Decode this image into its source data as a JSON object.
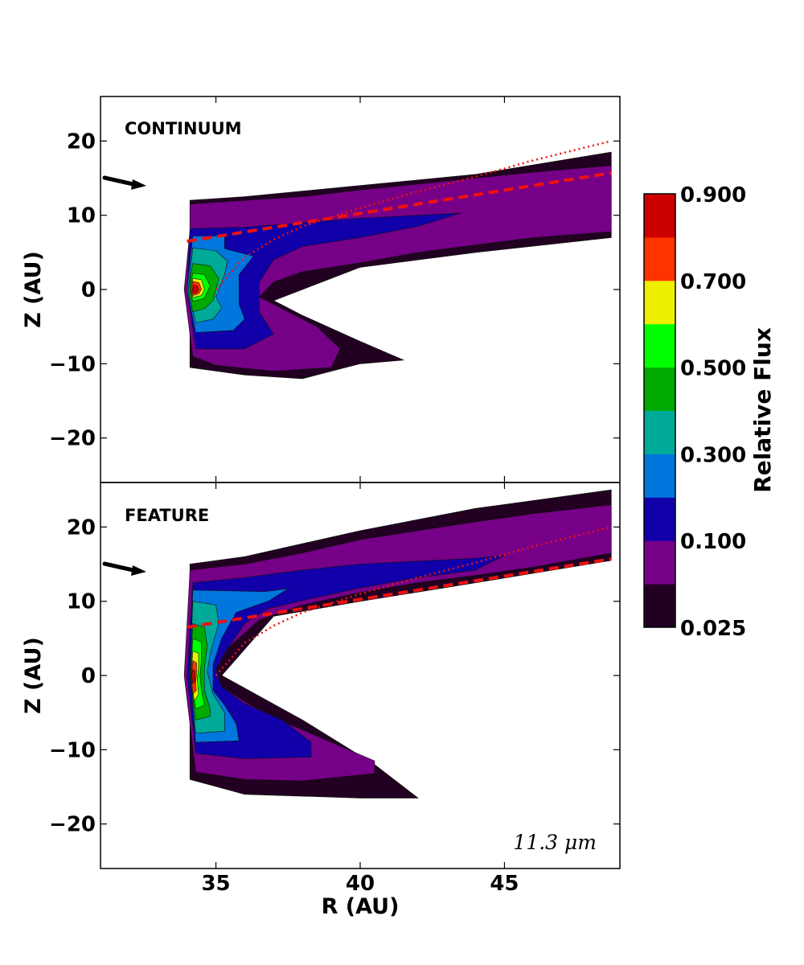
{
  "chart_data": [
    {
      "type": "heatmap",
      "panel_label": "CONTINUUM",
      "xlabel": "",
      "ylabel": "Z (AU)",
      "xlim": [
        31,
        49
      ],
      "ylim": [
        -26,
        26
      ],
      "xticks": [
        35,
        40,
        45
      ],
      "yticks": [
        -20,
        -10,
        0,
        10,
        20
      ],
      "ytick_labels": [
        "−20",
        "−10",
        "0",
        "10",
        "20"
      ],
      "contour_levels": [
        0.025,
        0.1,
        0.2,
        0.3,
        0.4,
        0.5,
        0.6,
        0.7,
        0.8,
        0.9
      ],
      "outer_boundary": {
        "upper": [
          [
            34.1,
            12
          ],
          [
            36,
            12.5
          ],
          [
            40,
            14
          ],
          [
            44,
            15.5
          ],
          [
            48.7,
            18.5
          ]
        ],
        "lower": [
          [
            34.1,
            -10.5
          ],
          [
            36,
            -11.5
          ],
          [
            38,
            -12
          ],
          [
            39,
            -11
          ],
          [
            40,
            -10
          ],
          [
            41.5,
            -9.5
          ],
          [
            40,
            -7
          ],
          [
            38,
            -3.5
          ],
          [
            37,
            -1.5
          ],
          [
            40,
            3
          ],
          [
            44,
            5
          ],
          [
            48.7,
            7
          ]
        ]
      },
      "dashed_line": {
        "x": [
          34,
          48.7
        ],
        "y": [
          6.5,
          15.7
        ]
      },
      "dotted_curve": {
        "x": [
          35,
          36,
          37,
          38,
          40,
          42,
          44,
          46,
          48.7
        ],
        "y": [
          0,
          4.4,
          6.7,
          8.5,
          11,
          13.2,
          15.2,
          17.4,
          20
        ]
      }
    },
    {
      "type": "heatmap",
      "panel_label": "FEATURE",
      "wavelength_label": "11.3 μm",
      "xlabel": "R (AU)",
      "ylabel": "Z (AU)",
      "xlim": [
        31,
        49
      ],
      "ylim": [
        -26,
        26
      ],
      "xticks": [
        35,
        40,
        45
      ],
      "yticks": [
        -20,
        -10,
        0,
        10,
        20
      ],
      "ytick_labels": [
        "−20",
        "−10",
        "0",
        "10",
        "20"
      ],
      "contour_levels": [
        0.025,
        0.1,
        0.2,
        0.3,
        0.4,
        0.5,
        0.6,
        0.7,
        0.8,
        0.9
      ],
      "outer_boundary": {
        "upper": [
          [
            34.1,
            15
          ],
          [
            36,
            16
          ],
          [
            40,
            19.5
          ],
          [
            44,
            22.5
          ],
          [
            48.7,
            25
          ]
        ],
        "lower": [
          [
            34.1,
            -14
          ],
          [
            36,
            -16
          ],
          [
            40,
            -16.5
          ],
          [
            42,
            -16.5
          ],
          [
            40.5,
            -12
          ],
          [
            38,
            -6
          ],
          [
            35.2,
            0
          ],
          [
            37,
            8
          ],
          [
            40,
            10
          ],
          [
            44,
            12.5
          ],
          [
            48.7,
            15.5
          ]
        ]
      },
      "dashed_line": {
        "x": [
          34,
          48.7
        ],
        "y": [
          6.5,
          15.7
        ]
      },
      "dotted_curve": {
        "x": [
          35,
          36,
          37,
          38,
          40,
          42,
          44,
          46,
          48.7
        ],
        "y": [
          0,
          4.4,
          6.7,
          8.5,
          11,
          13.2,
          15.2,
          17.4,
          20
        ]
      }
    }
  ],
  "colorbar": {
    "label": "Relative Flux",
    "tick_labels": [
      "0.900",
      "0.700",
      "0.500",
      "0.300",
      "0.100",
      "0.025"
    ],
    "colors": [
      "#220022",
      "#770088",
      "#1100aa",
      "#0077dd",
      "#00aa99",
      "#00aa00",
      "#00ff00",
      "#eeee00",
      "#ff3300",
      "#cc0000"
    ],
    "line_color": "#ee1111"
  },
  "icons": [
    "arrow-icon"
  ]
}
